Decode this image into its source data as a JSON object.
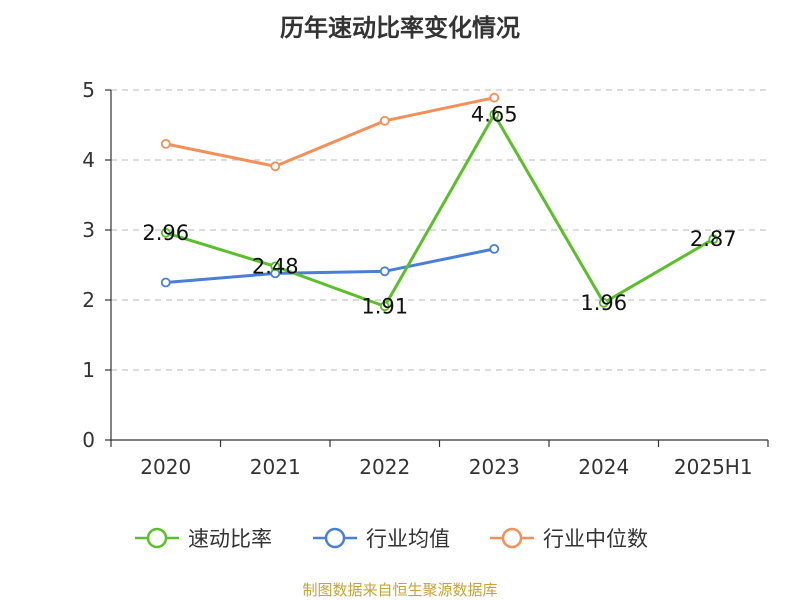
{
  "chart_data": {
    "type": "line",
    "title": "历年速动比率变化情况",
    "categories": [
      "2020",
      "2021",
      "2022",
      "2023",
      "2024",
      "2025H1"
    ],
    "ylim": [
      0,
      5
    ],
    "yticks": [
      "0",
      "1",
      "2",
      "3",
      "4",
      "5"
    ],
    "grid": true,
    "legend_position": "bottom",
    "series": [
      {
        "name": "速动比率",
        "color": "#5bbf2a",
        "values": [
          2.96,
          2.48,
          1.91,
          4.65,
          1.96,
          2.87
        ],
        "labels": [
          "2.96",
          "2.48",
          "1.91",
          "4.65",
          "1.96",
          "2.87"
        ]
      },
      {
        "name": "行业均值",
        "color": "#4a7fd6",
        "values": [
          2.25,
          2.38,
          2.41,
          2.73,
          null,
          null
        ]
      },
      {
        "name": "行业中位数",
        "color": "#f39058",
        "values": [
          4.23,
          3.91,
          4.56,
          4.89,
          null,
          null
        ]
      }
    ]
  },
  "footer": {
    "source": "制图数据来自恒生聚源数据库"
  }
}
